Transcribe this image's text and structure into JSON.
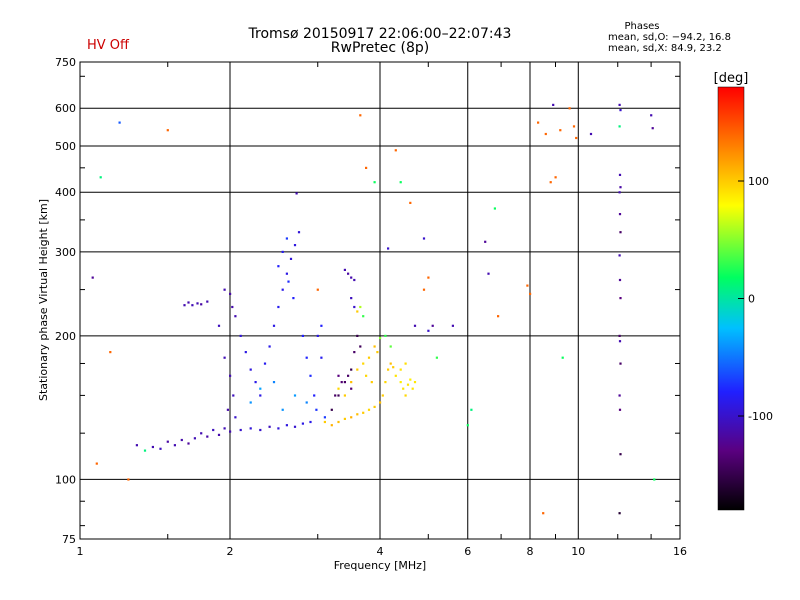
{
  "header": {
    "title": "Tromsø 20150917 22:06:00–22:07:43",
    "subtitle": "RwPretec (8p)",
    "hv_status": "HV Off",
    "phases_title": "Phases",
    "phases_o": "mean, sd,O: −94.2, 16.8",
    "phases_x": "mean, sd,X:  84.9, 23.2"
  },
  "colors": {
    "hv_status": "#cc0000",
    "scale": [
      "#000000",
      "#5a0080",
      "#2020ff",
      "#00c0ff",
      "#00ff60",
      "#ffff00",
      "#ff8000",
      "#ff0000"
    ]
  },
  "chart_data": {
    "type": "scatter",
    "title": "Tromsø 20150917 22:06:00–22:07:43",
    "subtitle": "RwPretec (8p)",
    "xlabel": "Frequency [MHz]",
    "ylabel": "Stationary phase Virtual Height [km]",
    "x_scale": "log",
    "y_scale": "log",
    "xlim": [
      1,
      16
    ],
    "ylim": [
      75,
      750
    ],
    "x_ticks": [
      1,
      2,
      4,
      6,
      8,
      10,
      16
    ],
    "y_ticks": [
      75,
      100,
      200,
      300,
      400,
      500,
      600,
      750
    ],
    "grid": true,
    "colorbar": {
      "label": "[deg]",
      "range": [
        -180,
        180
      ],
      "ticks": [
        100,
        0,
        -100
      ]
    },
    "points": [
      [
        1.06,
        265,
        -120
      ],
      [
        1.1,
        430,
        10
      ],
      [
        1.2,
        560,
        -60
      ],
      [
        1.3,
        118,
        -110
      ],
      [
        1.35,
        115,
        10
      ],
      [
        1.5,
        540,
        140
      ],
      [
        1.15,
        185,
        140
      ],
      [
        1.08,
        108,
        140
      ],
      [
        1.25,
        100,
        140
      ],
      [
        1.4,
        117,
        -110
      ],
      [
        1.45,
        116,
        -105
      ],
      [
        1.5,
        120,
        -115
      ],
      [
        1.55,
        118,
        -110
      ],
      [
        1.6,
        121,
        -112
      ],
      [
        1.65,
        119,
        -118
      ],
      [
        1.7,
        122,
        -108
      ],
      [
        1.75,
        125,
        -110
      ],
      [
        1.8,
        123,
        -115
      ],
      [
        1.85,
        127,
        -105
      ],
      [
        1.9,
        124,
        -112
      ],
      [
        1.95,
        128,
        -108
      ],
      [
        2.0,
        126,
        -110
      ],
      [
        2.1,
        127,
        -100
      ],
      [
        2.2,
        128,
        -95
      ],
      [
        2.3,
        127,
        -100
      ],
      [
        2.4,
        129,
        -105
      ],
      [
        2.5,
        128,
        -95
      ],
      [
        2.6,
        130,
        -92
      ],
      [
        2.7,
        129,
        -98
      ],
      [
        2.8,
        131,
        -90
      ],
      [
        2.9,
        132,
        -88
      ],
      [
        1.62,
        232,
        -110
      ],
      [
        1.65,
        235,
        -112
      ],
      [
        1.68,
        232,
        -108
      ],
      [
        1.72,
        234,
        -110
      ],
      [
        1.75,
        233,
        -115
      ],
      [
        1.8,
        236,
        -110
      ],
      [
        1.9,
        210,
        -105
      ],
      [
        1.95,
        250,
        -110
      ],
      [
        2.0,
        245,
        -115
      ],
      [
        2.02,
        230,
        -112
      ],
      [
        2.05,
        220,
        -110
      ],
      [
        1.95,
        180,
        -108
      ],
      [
        2.0,
        165,
        -110
      ],
      [
        2.03,
        150,
        -105
      ],
      [
        1.98,
        140,
        -112
      ],
      [
        2.05,
        135,
        -100
      ],
      [
        2.1,
        200,
        -95
      ],
      [
        2.15,
        185,
        -90
      ],
      [
        2.2,
        170,
        -92
      ],
      [
        2.25,
        160,
        -88
      ],
      [
        2.3,
        150,
        -90
      ],
      [
        2.35,
        175,
        -85
      ],
      [
        2.4,
        190,
        -88
      ],
      [
        2.45,
        210,
        -90
      ],
      [
        2.5,
        230,
        -85
      ],
      [
        2.55,
        250,
        -88
      ],
      [
        2.6,
        270,
        -90
      ],
      [
        2.65,
        290,
        -95
      ],
      [
        2.7,
        310,
        -92
      ],
      [
        2.75,
        330,
        -95
      ],
      [
        2.72,
        398,
        -110
      ],
      [
        2.5,
        280,
        -80
      ],
      [
        2.55,
        300,
        -85
      ],
      [
        2.6,
        320,
        -70
      ],
      [
        2.62,
        260,
        -75
      ],
      [
        2.68,
        240,
        -80
      ],
      [
        2.8,
        200,
        -80
      ],
      [
        2.85,
        180,
        -78
      ],
      [
        2.9,
        165,
        -75
      ],
      [
        2.95,
        150,
        -80
      ],
      [
        2.98,
        140,
        -72
      ],
      [
        2.2,
        145,
        -40
      ],
      [
        2.3,
        155,
        -35
      ],
      [
        2.45,
        160,
        -45
      ],
      [
        2.55,
        140,
        -40
      ],
      [
        2.7,
        150,
        -38
      ],
      [
        2.85,
        145,
        -45
      ],
      [
        3.05,
        210,
        -80
      ],
      [
        3.0,
        250,
        140
      ],
      [
        3.0,
        200,
        -90
      ],
      [
        3.05,
        180,
        -85
      ],
      [
        3.1,
        135,
        -70
      ],
      [
        3.2,
        140,
        -150
      ],
      [
        3.3,
        150,
        -145
      ],
      [
        3.4,
        160,
        -140
      ],
      [
        3.5,
        170,
        -150
      ],
      [
        3.55,
        185,
        -140
      ],
      [
        3.6,
        200,
        -150
      ],
      [
        3.65,
        190,
        -145
      ],
      [
        3.5,
        155,
        -135
      ],
      [
        3.45,
        165,
        -140
      ],
      [
        3.3,
        165,
        -130
      ],
      [
        3.35,
        160,
        -135
      ],
      [
        3.25,
        150,
        -140
      ],
      [
        3.4,
        275,
        -110
      ],
      [
        3.45,
        270,
        -115
      ],
      [
        3.5,
        265,
        -112
      ],
      [
        3.55,
        262,
        -110
      ],
      [
        3.5,
        240,
        -105
      ],
      [
        3.55,
        230,
        -100
      ],
      [
        3.6,
        225,
        100
      ],
      [
        3.65,
        230,
        60
      ],
      [
        3.7,
        220,
        30
      ],
      [
        3.1,
        132,
        100
      ],
      [
        3.2,
        130,
        110
      ],
      [
        3.3,
        132,
        105
      ],
      [
        3.4,
        134,
        100
      ],
      [
        3.5,
        135,
        110
      ],
      [
        3.6,
        137,
        105
      ],
      [
        3.7,
        138,
        100
      ],
      [
        3.8,
        140,
        95
      ],
      [
        3.9,
        142,
        100
      ],
      [
        4.0,
        145,
        105
      ],
      [
        4.05,
        150,
        100
      ],
      [
        4.1,
        160,
        95
      ],
      [
        4.15,
        170,
        100
      ],
      [
        4.2,
        175,
        105
      ],
      [
        4.25,
        172,
        100
      ],
      [
        3.3,
        155,
        95
      ],
      [
        3.4,
        150,
        100
      ],
      [
        3.5,
        160,
        105
      ],
      [
        3.6,
        170,
        100
      ],
      [
        3.7,
        175,
        95
      ],
      [
        3.8,
        180,
        100
      ],
      [
        3.9,
        190,
        105
      ],
      [
        3.95,
        185,
        100
      ],
      [
        3.75,
        165,
        95
      ],
      [
        3.85,
        160,
        100
      ],
      [
        4.3,
        165,
        90
      ],
      [
        4.4,
        160,
        85
      ],
      [
        4.45,
        155,
        90
      ],
      [
        4.5,
        150,
        95
      ],
      [
        4.55,
        158,
        90
      ],
      [
        4.6,
        162,
        85
      ],
      [
        4.65,
        155,
        90
      ],
      [
        4.7,
        160,
        88
      ],
      [
        4.4,
        170,
        90
      ],
      [
        4.5,
        175,
        92
      ],
      [
        4.1,
        200,
        30
      ],
      [
        4.2,
        190,
        40
      ],
      [
        4.0,
        198,
        50
      ],
      [
        3.65,
        580,
        140
      ],
      [
        3.75,
        450,
        140
      ],
      [
        3.9,
        420,
        20
      ],
      [
        4.15,
        305,
        -100
      ],
      [
        4.3,
        490,
        140
      ],
      [
        4.4,
        420,
        20
      ],
      [
        4.6,
        380,
        140
      ],
      [
        4.9,
        320,
        -100
      ],
      [
        5.0,
        265,
        140
      ],
      [
        5.1,
        210,
        -120
      ],
      [
        5.2,
        180,
        30
      ],
      [
        5.0,
        205,
        -100
      ],
      [
        4.7,
        210,
        -110
      ],
      [
        4.9,
        250,
        140
      ],
      [
        5.6,
        210,
        -110
      ],
      [
        6.0,
        130,
        20
      ],
      [
        6.1,
        140,
        10
      ],
      [
        6.5,
        315,
        -120
      ],
      [
        6.6,
        270,
        -110
      ],
      [
        6.8,
        370,
        20
      ],
      [
        6.9,
        220,
        140
      ],
      [
        7.9,
        255,
        140
      ],
      [
        8.0,
        245,
        140
      ],
      [
        8.3,
        560,
        140
      ],
      [
        8.6,
        530,
        140
      ],
      [
        8.8,
        420,
        140
      ],
      [
        9.0,
        430,
        140
      ],
      [
        9.2,
        540,
        140
      ],
      [
        8.9,
        610,
        -110
      ],
      [
        9.6,
        600,
        140
      ],
      [
        9.8,
        550,
        140
      ],
      [
        9.9,
        520,
        140
      ],
      [
        10.6,
        530,
        -110
      ],
      [
        9.3,
        180,
        20
      ],
      [
        8.5,
        85,
        140
      ],
      [
        12.1,
        610,
        -110
      ],
      [
        12.15,
        595,
        -100
      ],
      [
        12.1,
        550,
        10
      ],
      [
        12.12,
        435,
        -110
      ],
      [
        12.15,
        410,
        -115
      ],
      [
        12.1,
        400,
        -110
      ],
      [
        12.12,
        360,
        -120
      ],
      [
        12.15,
        330,
        -140
      ],
      [
        12.1,
        295,
        -110
      ],
      [
        12.12,
        262,
        -120
      ],
      [
        12.15,
        240,
        -130
      ],
      [
        12.1,
        200,
        -140
      ],
      [
        12.12,
        195,
        -110
      ],
      [
        12.15,
        175,
        -140
      ],
      [
        12.1,
        150,
        -120
      ],
      [
        12.12,
        140,
        -130
      ],
      [
        12.15,
        113,
        -150
      ],
      [
        12.1,
        85,
        -160
      ],
      [
        14.0,
        580,
        -110
      ],
      [
        14.1,
        545,
        -120
      ],
      [
        14.2,
        100,
        20
      ]
    ]
  }
}
